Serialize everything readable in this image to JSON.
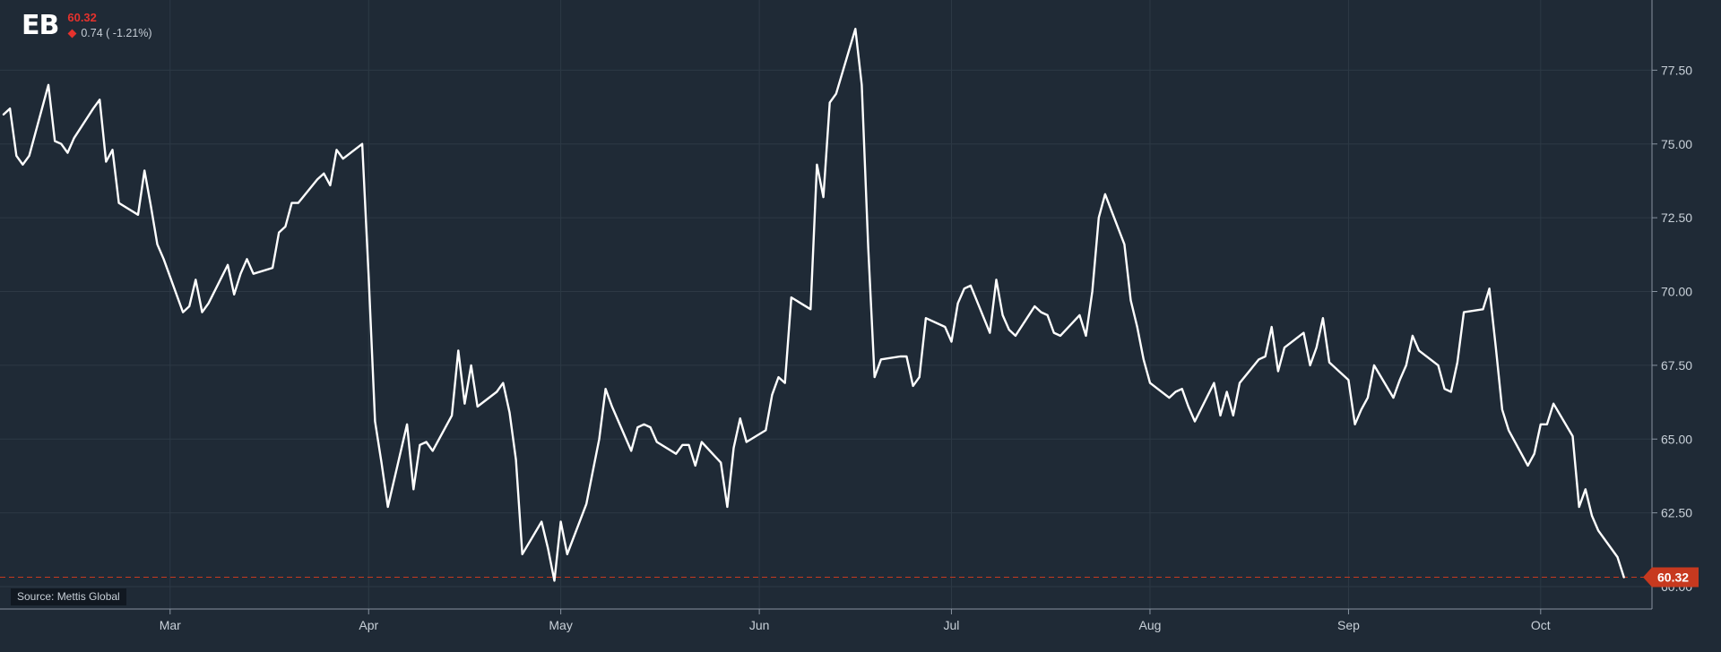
{
  "header": {
    "ticker": "EB",
    "last_price": "60.32",
    "change_text": "0.74 ( -1.21%)"
  },
  "source_label": "Source: Mettis Global",
  "price_tag": "60.32",
  "colors": {
    "background": "#1f2a36",
    "line": "#ffffff",
    "down": "#e5322d",
    "price_tag": "#c7391f",
    "grid": "#2d3945",
    "axis_text": "#c8d0d8"
  },
  "chart_data": {
    "type": "line",
    "title": "",
    "xlabel": "",
    "ylabel": "",
    "ylim": [
      59.9,
      79.8
    ],
    "y_ticks": [
      60,
      62.5,
      65,
      67.5,
      70,
      72.5,
      75,
      77.5
    ],
    "y_tick_labels": [
      "60.00",
      "62.50",
      "65.00",
      "67.50",
      "70.00",
      "72.50",
      "75.00",
      "77.50"
    ],
    "x_range": [
      "2025-02-03",
      "2025-10-17"
    ],
    "x_ticks": [
      {
        "label": "Mar",
        "date": "2025-03-01"
      },
      {
        "label": "Apr",
        "date": "2025-04-01"
      },
      {
        "label": "May",
        "date": "2025-05-01"
      },
      {
        "label": "Jun",
        "date": "2025-06-01"
      },
      {
        "label": "Jul",
        "date": "2025-07-01"
      },
      {
        "label": "Aug",
        "date": "2025-08-01"
      },
      {
        "label": "Sep",
        "date": "2025-09-01"
      },
      {
        "label": "Oct",
        "date": "2025-10-01"
      }
    ],
    "last_value": 60.32,
    "grid": true,
    "series": [
      {
        "points": [
          [
            "2025-02-03",
            76.0
          ],
          [
            "2025-02-04",
            76.2
          ],
          [
            "2025-02-05",
            74.6
          ],
          [
            "2025-02-06",
            74.3
          ],
          [
            "2025-02-07",
            74.6
          ],
          [
            "2025-02-10",
            77.0
          ],
          [
            "2025-02-11",
            75.1
          ],
          [
            "2025-02-12",
            75.0
          ],
          [
            "2025-02-13",
            74.7
          ],
          [
            "2025-02-14",
            75.2
          ],
          [
            "2025-02-17",
            76.2
          ],
          [
            "2025-02-18",
            76.5
          ],
          [
            "2025-02-19",
            74.4
          ],
          [
            "2025-02-20",
            74.8
          ],
          [
            "2025-02-21",
            73.0
          ],
          [
            "2025-02-24",
            72.6
          ],
          [
            "2025-02-25",
            74.1
          ],
          [
            "2025-02-26",
            72.9
          ],
          [
            "2025-02-27",
            71.6
          ],
          [
            "2025-02-28",
            71.1
          ],
          [
            "2025-03-03",
            69.3
          ],
          [
            "2025-03-04",
            69.5
          ],
          [
            "2025-03-05",
            70.4
          ],
          [
            "2025-03-06",
            69.3
          ],
          [
            "2025-03-07",
            69.6
          ],
          [
            "2025-03-10",
            70.9
          ],
          [
            "2025-03-11",
            69.9
          ],
          [
            "2025-03-12",
            70.6
          ],
          [
            "2025-03-13",
            71.1
          ],
          [
            "2025-03-14",
            70.6
          ],
          [
            "2025-03-17",
            70.8
          ],
          [
            "2025-03-18",
            72.0
          ],
          [
            "2025-03-19",
            72.2
          ],
          [
            "2025-03-20",
            73.0
          ],
          [
            "2025-03-21",
            73.0
          ],
          [
            "2025-03-24",
            73.8
          ],
          [
            "2025-03-25",
            74.0
          ],
          [
            "2025-03-26",
            73.6
          ],
          [
            "2025-03-27",
            74.8
          ],
          [
            "2025-03-28",
            74.5
          ],
          [
            "2025-03-31",
            75.0
          ],
          [
            "2025-04-01",
            70.5
          ],
          [
            "2025-04-02",
            65.6
          ],
          [
            "2025-04-03",
            64.2
          ],
          [
            "2025-04-04",
            62.7
          ],
          [
            "2025-04-07",
            65.5
          ],
          [
            "2025-04-08",
            63.3
          ],
          [
            "2025-04-09",
            64.8
          ],
          [
            "2025-04-10",
            64.9
          ],
          [
            "2025-04-11",
            64.6
          ],
          [
            "2025-04-14",
            65.8
          ],
          [
            "2025-04-15",
            68.0
          ],
          [
            "2025-04-16",
            66.2
          ],
          [
            "2025-04-17",
            67.5
          ],
          [
            "2025-04-18",
            66.1
          ],
          [
            "2025-04-21",
            66.6
          ],
          [
            "2025-04-22",
            66.9
          ],
          [
            "2025-04-23",
            65.9
          ],
          [
            "2025-04-24",
            64.3
          ],
          [
            "2025-04-25",
            61.1
          ],
          [
            "2025-04-28",
            62.2
          ],
          [
            "2025-04-29",
            61.3
          ],
          [
            "2025-04-30",
            60.2
          ],
          [
            "2025-05-01",
            62.2
          ],
          [
            "2025-05-02",
            61.1
          ],
          [
            "2025-05-05",
            62.8
          ],
          [
            "2025-05-06",
            63.9
          ],
          [
            "2025-05-07",
            65.0
          ],
          [
            "2025-05-08",
            66.7
          ],
          [
            "2025-05-09",
            66.1
          ],
          [
            "2025-05-12",
            64.6
          ],
          [
            "2025-05-13",
            65.4
          ],
          [
            "2025-05-14",
            65.5
          ],
          [
            "2025-05-15",
            65.4
          ],
          [
            "2025-05-16",
            64.9
          ],
          [
            "2025-05-19",
            64.5
          ],
          [
            "2025-05-20",
            64.8
          ],
          [
            "2025-05-21",
            64.8
          ],
          [
            "2025-05-22",
            64.1
          ],
          [
            "2025-05-23",
            64.9
          ],
          [
            "2025-05-26",
            64.2
          ],
          [
            "2025-05-27",
            62.7
          ],
          [
            "2025-05-28",
            64.7
          ],
          [
            "2025-05-29",
            65.7
          ],
          [
            "2025-05-30",
            64.9
          ],
          [
            "2025-06-02",
            65.3
          ],
          [
            "2025-06-03",
            66.5
          ],
          [
            "2025-06-04",
            67.1
          ],
          [
            "2025-06-05",
            66.9
          ],
          [
            "2025-06-06",
            69.8
          ],
          [
            "2025-06-09",
            69.4
          ],
          [
            "2025-06-10",
            74.3
          ],
          [
            "2025-06-11",
            73.2
          ],
          [
            "2025-06-12",
            76.4
          ],
          [
            "2025-06-13",
            76.7
          ],
          [
            "2025-06-16",
            78.9
          ],
          [
            "2025-06-17",
            77.0
          ],
          [
            "2025-06-18",
            71.5
          ],
          [
            "2025-06-19",
            67.1
          ],
          [
            "2025-06-20",
            67.7
          ],
          [
            "2025-06-23",
            67.8
          ],
          [
            "2025-06-24",
            67.8
          ],
          [
            "2025-06-25",
            66.8
          ],
          [
            "2025-06-26",
            67.1
          ],
          [
            "2025-06-27",
            69.1
          ],
          [
            "2025-06-30",
            68.8
          ],
          [
            "2025-07-01",
            68.3
          ],
          [
            "2025-07-02",
            69.6
          ],
          [
            "2025-07-03",
            70.1
          ],
          [
            "2025-07-04",
            70.2
          ],
          [
            "2025-07-07",
            68.6
          ],
          [
            "2025-07-08",
            70.4
          ],
          [
            "2025-07-09",
            69.2
          ],
          [
            "2025-07-10",
            68.7
          ],
          [
            "2025-07-11",
            68.5
          ],
          [
            "2025-07-14",
            69.5
          ],
          [
            "2025-07-15",
            69.3
          ],
          [
            "2025-07-16",
            69.2
          ],
          [
            "2025-07-17",
            68.6
          ],
          [
            "2025-07-18",
            68.5
          ],
          [
            "2025-07-21",
            69.2
          ],
          [
            "2025-07-22",
            68.5
          ],
          [
            "2025-07-23",
            70.0
          ],
          [
            "2025-07-24",
            72.5
          ],
          [
            "2025-07-25",
            73.3
          ],
          [
            "2025-07-28",
            71.6
          ],
          [
            "2025-07-29",
            69.7
          ],
          [
            "2025-07-30",
            68.8
          ],
          [
            "2025-07-31",
            67.7
          ],
          [
            "2025-08-01",
            66.9
          ],
          [
            "2025-08-04",
            66.4
          ],
          [
            "2025-08-05",
            66.6
          ],
          [
            "2025-08-06",
            66.7
          ],
          [
            "2025-08-07",
            66.1
          ],
          [
            "2025-08-08",
            65.6
          ],
          [
            "2025-08-11",
            66.9
          ],
          [
            "2025-08-12",
            65.8
          ],
          [
            "2025-08-13",
            66.6
          ],
          [
            "2025-08-14",
            65.8
          ],
          [
            "2025-08-15",
            66.9
          ],
          [
            "2025-08-18",
            67.7
          ],
          [
            "2025-08-19",
            67.8
          ],
          [
            "2025-08-20",
            68.8
          ],
          [
            "2025-08-21",
            67.3
          ],
          [
            "2025-08-22",
            68.1
          ],
          [
            "2025-08-25",
            68.6
          ],
          [
            "2025-08-26",
            67.5
          ],
          [
            "2025-08-27",
            68.1
          ],
          [
            "2025-08-28",
            69.1
          ],
          [
            "2025-08-29",
            67.6
          ],
          [
            "2025-09-01",
            67.0
          ],
          [
            "2025-09-02",
            65.5
          ],
          [
            "2025-09-03",
            66.0
          ],
          [
            "2025-09-04",
            66.4
          ],
          [
            "2025-09-05",
            67.5
          ],
          [
            "2025-09-08",
            66.4
          ],
          [
            "2025-09-09",
            67.0
          ],
          [
            "2025-09-10",
            67.5
          ],
          [
            "2025-09-11",
            68.5
          ],
          [
            "2025-09-12",
            68.0
          ],
          [
            "2025-09-15",
            67.5
          ],
          [
            "2025-09-16",
            66.7
          ],
          [
            "2025-09-17",
            66.6
          ],
          [
            "2025-09-18",
            67.6
          ],
          [
            "2025-09-19",
            69.3
          ],
          [
            "2025-09-22",
            69.4
          ],
          [
            "2025-09-23",
            70.1
          ],
          [
            "2025-09-24",
            68.1
          ],
          [
            "2025-09-25",
            66.0
          ],
          [
            "2025-09-26",
            65.3
          ],
          [
            "2025-09-29",
            64.1
          ],
          [
            "2025-09-30",
            64.5
          ],
          [
            "2025-10-01",
            65.5
          ],
          [
            "2025-10-02",
            65.5
          ],
          [
            "2025-10-03",
            66.2
          ],
          [
            "2025-10-06",
            65.1
          ],
          [
            "2025-10-07",
            62.7
          ],
          [
            "2025-10-08",
            63.3
          ],
          [
            "2025-10-09",
            62.4
          ],
          [
            "2025-10-10",
            61.9
          ],
          [
            "2025-10-13",
            61.0
          ],
          [
            "2025-10-14",
            60.32
          ]
        ]
      }
    ]
  }
}
